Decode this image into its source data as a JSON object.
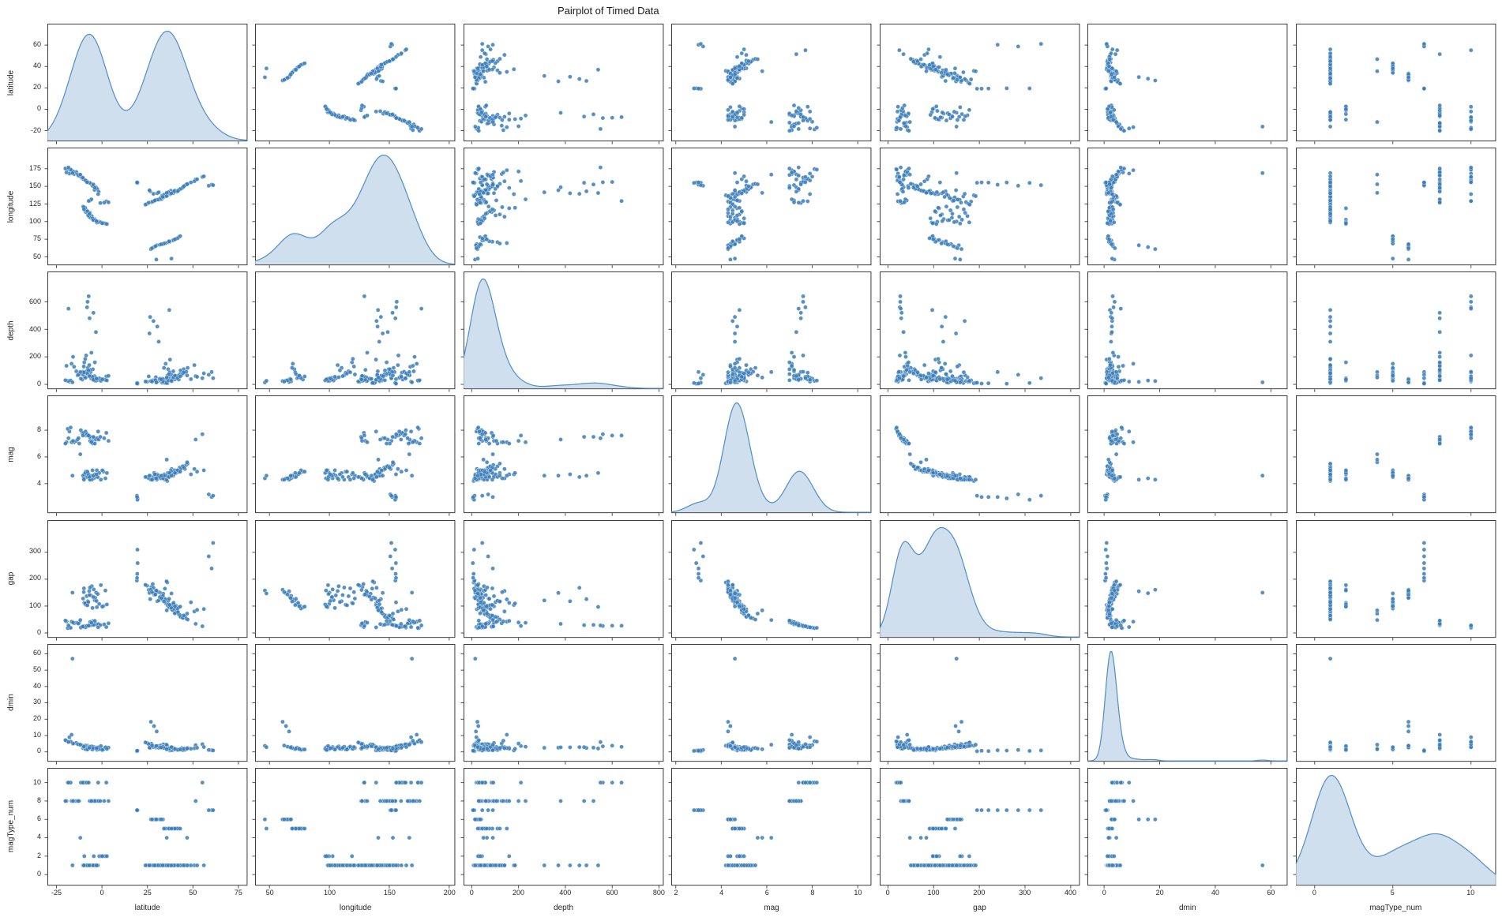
{
  "title": "Pairplot of Timed Data",
  "chart_data": {
    "type": "scatter",
    "subtype": "pairplot-matrix",
    "title": "Pairplot of Timed Data",
    "diagonal": "kde",
    "grid": false,
    "legend": null,
    "columns": [
      "latitude",
      "longitude",
      "depth",
      "mag",
      "gap",
      "dmin",
      "magType_num"
    ],
    "variables": [
      {
        "label": "latitude",
        "domain": [
          -30,
          80
        ],
        "xticks": [
          -25,
          0,
          25,
          50,
          75
        ],
        "yticks": [
          -20,
          0,
          20,
          40,
          60
        ]
      },
      {
        "label": "longitude",
        "domain": [
          38,
          205
        ],
        "xticks": [
          50,
          100,
          150,
          200
        ],
        "yticks": [
          50,
          75,
          100,
          125,
          150,
          175
        ]
      },
      {
        "label": "depth",
        "domain": [
          -35,
          820
        ],
        "xticks": [
          0,
          200,
          400,
          600,
          800
        ],
        "yticks": [
          0,
          200,
          400,
          600
        ]
      },
      {
        "label": "mag",
        "domain": [
          1.8,
          10.6
        ],
        "xticks": [
          2,
          4,
          6,
          8,
          10
        ],
        "yticks": [
          4,
          6,
          8
        ]
      },
      {
        "label": "gap",
        "domain": [
          -18,
          420
        ],
        "xticks": [
          0,
          100,
          200,
          300,
          400
        ],
        "yticks": [
          0,
          100,
          200,
          300
        ]
      },
      {
        "label": "dmin",
        "domain": [
          -6,
          66
        ],
        "xticks": [
          0,
          20,
          40,
          60
        ],
        "yticks": [
          0,
          10,
          20,
          30,
          40,
          50,
          60
        ]
      },
      {
        "label": "magType_num",
        "domain": [
          -1.2,
          11.6
        ],
        "xticks": [
          0,
          5,
          10
        ],
        "yticks": [
          0,
          2,
          4,
          6,
          8,
          10
        ]
      }
    ],
    "colors": {
      "point": "#3a7cb8",
      "kde_fill": "#c3d7e9",
      "kde_line": "#4f8ec4",
      "spine": "#3c3c3c",
      "tick_text": "#262626"
    },
    "points": [
      [
        35.2,
        139.1,
        35,
        4.6,
        110,
        2.1,
        1
      ],
      [
        36.8,
        141.2,
        48,
        4.8,
        95,
        1.4,
        1
      ],
      [
        38.3,
        142.0,
        22,
        5.1,
        88,
        2.9,
        1
      ],
      [
        33.1,
        136.8,
        12,
        4.4,
        132,
        3.5,
        1
      ],
      [
        40.5,
        143.3,
        60,
        4.9,
        76,
        1.8,
        1
      ],
      [
        31.9,
        131.5,
        41,
        4.5,
        150,
        2.6,
        1
      ],
      [
        37.4,
        138.9,
        180,
        4.7,
        104,
        0.9,
        1
      ],
      [
        42.1,
        144.8,
        55,
        5.0,
        70,
        1.2,
        1
      ],
      [
        34.6,
        135.7,
        10,
        4.3,
        165,
        4.2,
        1
      ],
      [
        39.2,
        140.4,
        95,
        4.6,
        99,
        1.6,
        1
      ],
      [
        28.7,
        129.3,
        33,
        4.8,
        142,
        3.1,
        1
      ],
      [
        43.8,
        147.1,
        68,
        5.2,
        64,
        2.3,
        1
      ],
      [
        30.4,
        140.2,
        420,
        4.7,
        118,
        2.8,
        1
      ],
      [
        27.2,
        127.6,
        25,
        4.4,
        171,
        5.0,
        1
      ],
      [
        44.9,
        149.5,
        110,
        5.3,
        58,
        1.1,
        1
      ],
      [
        35.9,
        137.3,
        8,
        4.2,
        188,
        3.8,
        1
      ],
      [
        41.3,
        142.6,
        44,
        4.9,
        81,
        1.5,
        1
      ],
      [
        26.5,
        143.0,
        490,
        4.6,
        126,
        2.4,
        1
      ],
      [
        32.8,
        132.1,
        30,
        4.5,
        139,
        3.3,
        1
      ],
      [
        37.9,
        143.8,
        28,
        5.0,
        92,
        1.9,
        1
      ],
      [
        29.6,
        130.8,
        52,
        4.7,
        157,
        2.7,
        1
      ],
      [
        45.6,
        151.2,
        85,
        5.1,
        62,
        1.3,
        1
      ],
      [
        33.7,
        134.4,
        38,
        4.4,
        146,
        4.6,
        1
      ],
      [
        36.1,
        139.7,
        66,
        4.8,
        102,
        2.0,
        1
      ],
      [
        24.8,
        125.2,
        19,
        4.5,
        176,
        5.4,
        1
      ],
      [
        42.7,
        145.9,
        73,
        5.2,
        67,
        1.7,
        1
      ],
      [
        31.2,
        141.6,
        310,
        4.6,
        121,
        2.5,
        1
      ],
      [
        38.8,
        141.9,
        47,
        4.9,
        85,
        1.0,
        1
      ],
      [
        27.9,
        128.4,
        29,
        4.3,
        182,
        4.0,
        1
      ],
      [
        46.3,
        152.8,
        92,
        5.4,
        54,
        2.2,
        1
      ],
      [
        34.2,
        138.2,
        15,
        4.7,
        129,
        3.0,
        1
      ],
      [
        40.0,
        144.1,
        36,
        5.0,
        73,
        1.4,
        1
      ],
      [
        25.7,
        126.9,
        58,
        4.4,
        160,
        4.8,
        1
      ],
      [
        43.2,
        146.4,
        101,
        5.1,
        60,
        1.6,
        1
      ],
      [
        30.9,
        131.2,
        24,
        4.6,
        153,
        3.6,
        1
      ],
      [
        37.0,
        140.6,
        540,
        4.8,
        97,
        2.1,
        1
      ],
      [
        28.3,
        139.4,
        460,
        4.5,
        168,
        2.9,
        1
      ],
      [
        44.4,
        148.3,
        79,
        5.3,
        56,
        1.2,
        1
      ],
      [
        32.3,
        133.6,
        42,
        4.4,
        135,
        3.9,
        1
      ],
      [
        39.7,
        142.9,
        51,
        4.9,
        90,
        1.8,
        1
      ],
      [
        26.1,
        144.5,
        370,
        4.6,
        149,
        2.6,
        1
      ],
      [
        47.1,
        153.6,
        120,
        5.5,
        50,
        2.4,
        1
      ],
      [
        35.5,
        136.2,
        11,
        4.3,
        192,
        4.4,
        1
      ],
      [
        41.8,
        143.5,
        63,
        5.0,
        78,
        1.5,
        1
      ],
      [
        29.1,
        129.9,
        34,
        4.7,
        144,
        3.2,
        1
      ],
      [
        36.5,
        141.8,
        27,
        4.8,
        107,
        2.3,
        1
      ],
      [
        23.9,
        124.1,
        21,
        4.5,
        179,
        5.8,
        1
      ],
      [
        45.0,
        150.1,
        88,
        5.2,
        65,
        1.9,
        1
      ],
      [
        33.4,
        135.1,
        40,
        4.6,
        124,
        3.4,
        1
      ],
      [
        38.1,
        140.0,
        70,
        4.9,
        94,
        1.1,
        1
      ],
      [
        -5.4,
        151.8,
        45,
        7.2,
        32,
        2.5,
        8
      ],
      [
        -6.2,
        154.3,
        90,
        7.5,
        28,
        3.1,
        8
      ],
      [
        -10.8,
        161.2,
        35,
        7.8,
        24,
        4.0,
        10
      ],
      [
        -15.3,
        167.5,
        128,
        7.1,
        36,
        5.2,
        8
      ],
      [
        -4.1,
        144.9,
        60,
        7.4,
        30,
        2.2,
        8
      ],
      [
        -8.7,
        157.6,
        210,
        7.6,
        26,
        3.6,
        10
      ],
      [
        -12.5,
        166.1,
        75,
        7.0,
        40,
        4.5,
        8
      ],
      [
        -17.9,
        168.2,
        20,
        7.9,
        22,
        9.0,
        10
      ],
      [
        -3.3,
        148.7,
        380,
        7.3,
        34,
        2.8,
        8
      ],
      [
        -9.5,
        159.0,
        55,
        7.7,
        25,
        3.3,
        10
      ],
      [
        -14.1,
        170.4,
        95,
        7.2,
        38,
        5.5,
        8
      ],
      [
        -6.8,
        155.1,
        480,
        7.5,
        29,
        2.9,
        8
      ],
      [
        -11.6,
        163.8,
        42,
        8.0,
        20,
        4.2,
        10
      ],
      [
        -16.7,
        172.9,
        150,
        7.1,
        42,
        10.5,
        8
      ],
      [
        -2.6,
        146.3,
        30,
        7.4,
        31,
        2.4,
        8
      ],
      [
        -7.9,
        156.2,
        600,
        7.6,
        27,
        3.8,
        10
      ],
      [
        -13.4,
        167.0,
        66,
        7.3,
        37,
        4.8,
        8
      ],
      [
        -18.8,
        174.6,
        25,
        8.1,
        18,
        6.5,
        10
      ],
      [
        -5.0,
        150.4,
        110,
        7.0,
        44,
        2.7,
        8
      ],
      [
        -10.2,
        160.5,
        85,
        7.8,
        23,
        3.5,
        10
      ],
      [
        -15.9,
        171.1,
        200,
        7.2,
        39,
        5.1,
        8
      ],
      [
        -4.7,
        152.7,
        520,
        7.5,
        30,
        2.6,
        8
      ],
      [
        -9.0,
        158.4,
        48,
        7.9,
        21,
        3.9,
        10
      ],
      [
        -19.5,
        169.7,
        135,
        7.1,
        43,
        6.8,
        8
      ],
      [
        -1.8,
        142.5,
        38,
        7.3,
        33,
        2.3,
        8
      ],
      [
        -8.2,
        155.8,
        560,
        7.7,
        26,
        3.4,
        10
      ],
      [
        -12.9,
        165.3,
        70,
        7.4,
        35,
        4.6,
        8
      ],
      [
        -17.2,
        173.8,
        28,
        8.2,
        19,
        6.3,
        10
      ],
      [
        -3.9,
        147.8,
        160,
        7.0,
        45,
        2.5,
        8
      ],
      [
        -10.5,
        162.4,
        92,
        7.6,
        24,
        3.7,
        10
      ],
      [
        -6.5,
        130.1,
        105,
        7.2,
        41,
        3.0,
        8
      ],
      [
        -0.9,
        126.4,
        40,
        7.5,
        29,
        2.1,
        8
      ],
      [
        2.4,
        128.8,
        58,
        7.8,
        22,
        2.8,
        10
      ],
      [
        -5.8,
        131.6,
        230,
        7.1,
        38,
        3.2,
        8
      ],
      [
        1.2,
        126.9,
        35,
        7.4,
        32,
        2.0,
        8
      ],
      [
        -7.3,
        129.2,
        640,
        7.6,
        27,
        3.1,
        10
      ],
      [
        3.6,
        127.3,
        62,
        7.2,
        36,
        2.6,
        8
      ],
      [
        -2.1,
        139.0,
        33,
        7.9,
        21,
        2.9,
        10
      ],
      [
        51.5,
        159.8,
        60,
        7.3,
        34,
        4.1,
        8
      ],
      [
        55.2,
        163.4,
        45,
        7.7,
        25,
        4.7,
        10
      ],
      [
        -6.1,
        105.4,
        45,
        4.6,
        140,
        2.2,
        1
      ],
      [
        -7.8,
        110.2,
        120,
        4.8,
        118,
        1.8,
        1
      ],
      [
        -4.5,
        102.7,
        38,
        4.4,
        162,
        3.0,
        2
      ],
      [
        -8.9,
        113.6,
        85,
        4.9,
        105,
        1.5,
        1
      ],
      [
        -3.2,
        100.1,
        25,
        4.5,
        150,
        2.7,
        1
      ],
      [
        -9.7,
        118.9,
        160,
        4.7,
        112,
        2.0,
        2
      ],
      [
        -5.6,
        107.8,
        52,
        4.3,
        174,
        3.4,
        1
      ],
      [
        -2.8,
        98.6,
        30,
        5.0,
        96,
        1.3,
        1
      ],
      [
        -10.4,
        121.3,
        72,
        4.6,
        128,
        2.4,
        1
      ],
      [
        -1.5,
        99.8,
        44,
        4.8,
        108,
        1.7,
        2
      ],
      [
        -7.0,
        106.9,
        140,
        4.4,
        156,
        2.9,
        1
      ],
      [
        -4.0,
        103.5,
        28,
        4.7,
        122,
        2.1,
        1
      ],
      [
        -8.4,
        116.0,
        95,
        4.5,
        137,
        2.5,
        1
      ],
      [
        0.8,
        98.0,
        36,
        4.9,
        100,
        1.6,
        2
      ],
      [
        -6.6,
        112.4,
        66,
        4.3,
        169,
        3.2,
        1
      ],
      [
        -3.7,
        101.9,
        48,
        4.6,
        131,
        2.3,
        1
      ],
      [
        -9.2,
        119.6,
        185,
        4.8,
        110,
        1.9,
        1
      ],
      [
        1.9,
        97.2,
        32,
        4.4,
        158,
        2.8,
        2
      ],
      [
        -5.2,
        104.6,
        55,
        5.0,
        93,
        1.4,
        1
      ],
      [
        -2.3,
        99.3,
        40,
        4.5,
        145,
        2.6,
        1
      ],
      [
        -7.5,
        108.8,
        102,
        4.7,
        115,
        2.0,
        1
      ],
      [
        -0.6,
        98.9,
        26,
        4.3,
        178,
        3.6,
        2
      ],
      [
        -8.0,
        114.7,
        78,
        4.9,
        103,
        1.5,
        1
      ],
      [
        -4.8,
        102.2,
        34,
        4.6,
        134,
        2.4,
        1
      ],
      [
        -10.0,
        120.5,
        130,
        4.4,
        152,
        3.0,
        1
      ],
      [
        2.7,
        96.5,
        29,
        4.8,
        106,
        1.8,
        2
      ],
      [
        -6.9,
        111.1,
        60,
        4.5,
        141,
        2.5,
        1
      ],
      [
        -3.0,
        100.7,
        42,
        4.7,
        119,
        2.2,
        1
      ],
      [
        -9.9,
        117.4,
        88,
        4.3,
        166,
        3.3,
        1
      ],
      [
        0.2,
        97.6,
        37,
        5.0,
        98,
        1.2,
        2
      ],
      [
        36.4,
        70.8,
        110,
        4.5,
        120,
        1.9,
        5
      ],
      [
        38.9,
        73.2,
        45,
        4.7,
        108,
        2.6,
        5
      ],
      [
        33.5,
        68.1,
        22,
        4.4,
        138,
        3.1,
        6
      ],
      [
        40.7,
        75.6,
        60,
        4.8,
        101,
        1.6,
        5
      ],
      [
        30.1,
        66.4,
        18,
        4.3,
        155,
        12.5,
        6
      ],
      [
        42.2,
        77.9,
        35,
        4.9,
        95,
        1.4,
        5
      ],
      [
        35.0,
        69.5,
        150,
        4.6,
        125,
        2.3,
        5
      ],
      [
        28.6,
        63.8,
        28,
        4.4,
        148,
        15.8,
        6
      ],
      [
        39.4,
        74.0,
        52,
        4.7,
        112,
        2.0,
        5
      ],
      [
        31.8,
        67.2,
        40,
        4.5,
        133,
        2.8,
        6
      ],
      [
        37.2,
        71.5,
        88,
        4.8,
        104,
        1.7,
        5
      ],
      [
        26.9,
        61.0,
        24,
        4.3,
        161,
        18.4,
        6
      ],
      [
        41.5,
        76.3,
        46,
        5.0,
        91,
        1.3,
        5
      ],
      [
        34.1,
        68.9,
        120,
        4.6,
        117,
        2.4,
        5
      ],
      [
        29.4,
        65.1,
        30,
        4.4,
        143,
        3.2,
        6
      ],
      [
        43.0,
        79.4,
        58,
        4.9,
        98,
        1.5,
        5
      ],
      [
        36.9,
        72.1,
        75,
        4.5,
        127,
        2.1,
        5
      ],
      [
        27.5,
        62.3,
        20,
        4.3,
        152,
        3.9,
        6
      ],
      [
        40.1,
        74.8,
        64,
        4.8,
        99,
        1.8,
        5
      ],
      [
        32.6,
        67.8,
        36,
        4.6,
        130,
        2.7,
        6
      ],
      [
        19.4,
        155.3,
        8,
        3.0,
        220,
        0.5,
        7
      ],
      [
        19.6,
        155.5,
        5,
        2.9,
        260,
        0.8,
        7
      ],
      [
        19.2,
        155.1,
        12,
        3.1,
        195,
        0.4,
        7
      ],
      [
        60.3,
        152.4,
        90,
        3.0,
        240,
        1.0,
        7
      ],
      [
        58.7,
        150.9,
        70,
        3.2,
        285,
        1.2,
        7
      ],
      [
        19.5,
        154.9,
        10,
        2.8,
        310,
        0.6,
        7
      ],
      [
        61.1,
        151.7,
        45,
        3.1,
        335,
        0.9,
        7
      ],
      [
        19.3,
        155.6,
        6,
        3.0,
        205,
        0.7,
        7
      ],
      [
        -16.2,
        168.9,
        15,
        4.6,
        150,
        57.0,
        1
      ],
      [
        50.8,
        157.2,
        140,
        5.1,
        80,
        2.2,
        1
      ],
      [
        52.3,
        160.1,
        55,
        4.9,
        86,
        2.5,
        1
      ],
      [
        48.9,
        155.6,
        38,
        4.7,
        114,
        1.9,
        1
      ],
      [
        -20.1,
        175.3,
        30,
        7.0,
        46,
        7.2,
        8
      ],
      [
        -18.4,
        176.8,
        550,
        7.4,
        28,
        6.0,
        10
      ],
      [
        56.0,
        164.2,
        80,
        5.0,
        89,
        3.0,
        1
      ],
      [
        46.8,
        153.0,
        65,
        5.6,
        72,
        2.0,
        4
      ],
      [
        -11.9,
        166.7,
        90,
        6.2,
        48,
        4.4,
        4
      ],
      [
        35.6,
        140.8,
        50,
        5.8,
        84,
        1.6,
        4
      ],
      [
        29.9,
        46.2,
        14,
        4.4,
        158,
        3.7,
        6
      ],
      [
        38.2,
        47.5,
        26,
        4.6,
        147,
        2.9,
        5
      ]
    ]
  }
}
